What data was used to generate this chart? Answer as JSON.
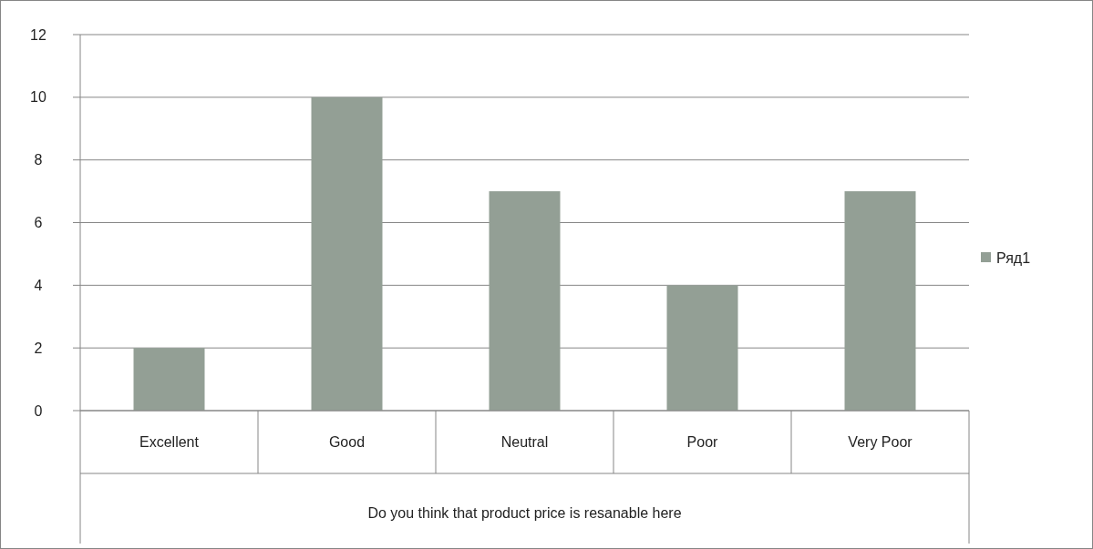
{
  "chart_data": {
    "type": "bar",
    "xlabel": "Do you think that product price is resanable here",
    "categories": [
      "Excellent",
      "Good",
      "Neutral",
      "Poor",
      "Very Poor"
    ],
    "series": [
      {
        "name": "Ряд1",
        "color": "#939f95",
        "values": [
          2,
          10,
          7,
          4,
          7
        ]
      }
    ],
    "ylim": [
      0,
      12
    ],
    "yticks": [
      0,
      2,
      4,
      6,
      8,
      10,
      12
    ],
    "grid": "y",
    "legend": "right"
  }
}
